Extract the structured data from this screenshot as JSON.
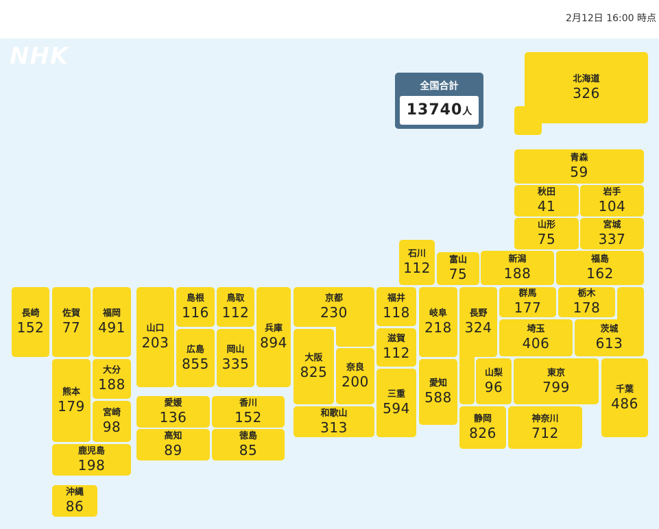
{
  "timestamp": "2月12日 16:00 時点",
  "logo": "NHK",
  "total": {
    "label": "全国合計",
    "value": "13740",
    "unit": "人"
  },
  "prefectures": {
    "hokkaido": {
      "name": "北海道",
      "value": "326"
    },
    "aomori": {
      "name": "青森",
      "value": "59"
    },
    "akita": {
      "name": "秋田",
      "value": "41"
    },
    "iwate": {
      "name": "岩手",
      "value": "104"
    },
    "yamagata": {
      "name": "山形",
      "value": "75"
    },
    "miyagi": {
      "name": "宮城",
      "value": "337"
    },
    "ishikawa": {
      "name": "石川",
      "value": "112"
    },
    "toyama": {
      "name": "富山",
      "value": "75"
    },
    "niigata": {
      "name": "新潟",
      "value": "188"
    },
    "fukushima": {
      "name": "福島",
      "value": "162"
    },
    "nagasaki": {
      "name": "長崎",
      "value": "152"
    },
    "saga": {
      "name": "佐賀",
      "value": "77"
    },
    "fukuoka": {
      "name": "福岡",
      "value": "491"
    },
    "yamaguchi": {
      "name": "山口",
      "value": "203"
    },
    "shimane": {
      "name": "島根",
      "value": "116"
    },
    "tottori": {
      "name": "鳥取",
      "value": "112"
    },
    "hyogo": {
      "name": "兵庫",
      "value": "894"
    },
    "kyoto": {
      "name": "京都",
      "value": "230"
    },
    "fukui": {
      "name": "福井",
      "value": "118"
    },
    "gifu": {
      "name": "岐阜",
      "value": "218"
    },
    "nagano": {
      "name": "長野",
      "value": "324"
    },
    "gunma": {
      "name": "群馬",
      "value": "177"
    },
    "tochigi": {
      "name": "栃木",
      "value": "178"
    },
    "ibaraki": {
      "name": "茨城",
      "value": "613"
    },
    "saitama": {
      "name": "埼玉",
      "value": "406"
    },
    "hiroshima": {
      "name": "広島",
      "value": "855"
    },
    "okayama": {
      "name": "岡山",
      "value": "335"
    },
    "osaka": {
      "name": "大阪",
      "value": "825"
    },
    "nara": {
      "name": "奈良",
      "value": "200"
    },
    "shiga": {
      "name": "滋賀",
      "value": "112"
    },
    "mie": {
      "name": "三重",
      "value": "594"
    },
    "aichi": {
      "name": "愛知",
      "value": "588"
    },
    "yamanashi": {
      "name": "山梨",
      "value": "96"
    },
    "tokyo": {
      "name": "東京",
      "value": "799"
    },
    "chiba": {
      "name": "千葉",
      "value": "486"
    },
    "kumamoto": {
      "name": "熊本",
      "value": "179"
    },
    "oita": {
      "name": "大分",
      "value": "188"
    },
    "miyazaki": {
      "name": "宮崎",
      "value": "98"
    },
    "ehime": {
      "name": "愛媛",
      "value": "136"
    },
    "kagawa": {
      "name": "香川",
      "value": "152"
    },
    "kochi": {
      "name": "高知",
      "value": "89"
    },
    "tokushima": {
      "name": "徳島",
      "value": "85"
    },
    "wakayama": {
      "name": "和歌山",
      "value": "313"
    },
    "shizuoka": {
      "name": "静岡",
      "value": "826"
    },
    "kanagawa": {
      "name": "神奈川",
      "value": "712"
    },
    "kagoshima": {
      "name": "鹿児島",
      "value": "198"
    },
    "okinawa": {
      "name": "沖縄",
      "value": "86"
    }
  }
}
